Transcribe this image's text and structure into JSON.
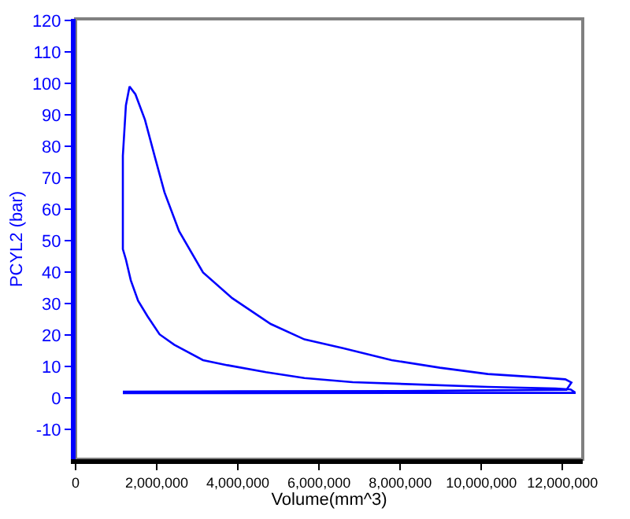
{
  "chart_data": {
    "type": "line",
    "xlabel": "Volume(mm^3)",
    "ylabel": "PCYL2 (bar)",
    "xlim": [
      0,
      12500000
    ],
    "ylim": [
      -19.5,
      120.5
    ],
    "xticks": [
      0,
      {
        "value": 2000000,
        "label": "2,000,000"
      },
      {
        "value": 4000000,
        "label": "4,000,000"
      },
      {
        "value": 6000000,
        "label": "6,000,000"
      },
      {
        "value": 8000000,
        "label": "8,000,000"
      },
      {
        "value": 10000000,
        "label": "10,000,000"
      },
      {
        "value": 12000000,
        "label": "12,000,000"
      }
    ],
    "yticks": [
      -10,
      0,
      10,
      20,
      30,
      40,
      50,
      60,
      70,
      80,
      90,
      100,
      110,
      120
    ],
    "grid": false,
    "legend": false,
    "marker": "none",
    "line_style": "solid",
    "series": [
      {
        "color": "#0000ff",
        "x": [
          1165000,
          4000000,
          8000000,
          12300000,
          12300000,
          12200000,
          11830000,
          10160000,
          6830000,
          5640000,
          4690000,
          3740000,
          3140000,
          2430000,
          2070000,
          1770000,
          1540000,
          1360000,
          1240000,
          1165000,
          1165000,
          1240000,
          1330000,
          1475000,
          1710000,
          1950000,
          2190000,
          2550000,
          3140000,
          3860000,
          4810000,
          5640000,
          6590000,
          7790000,
          8980000,
          10160000,
          11360000,
          12070000,
          12220000,
          12100000,
          8000000,
          4000000,
          1165000
        ],
        "values": [
          1.5,
          1.5,
          1.6,
          1.6,
          1.8,
          2.7,
          3.0,
          3.5,
          5.0,
          6.3,
          8.2,
          10.4,
          12,
          16.9,
          20.2,
          26,
          30.9,
          37.4,
          44,
          47.3,
          77,
          93,
          99,
          96.5,
          88.4,
          76.8,
          65.4,
          53,
          39.9,
          31.7,
          23.5,
          18.6,
          15.8,
          12.0,
          9.6,
          7.6,
          6.6,
          5.9,
          4.9,
          2.6,
          2.2,
          2.1,
          2.0
        ]
      }
    ]
  }
}
